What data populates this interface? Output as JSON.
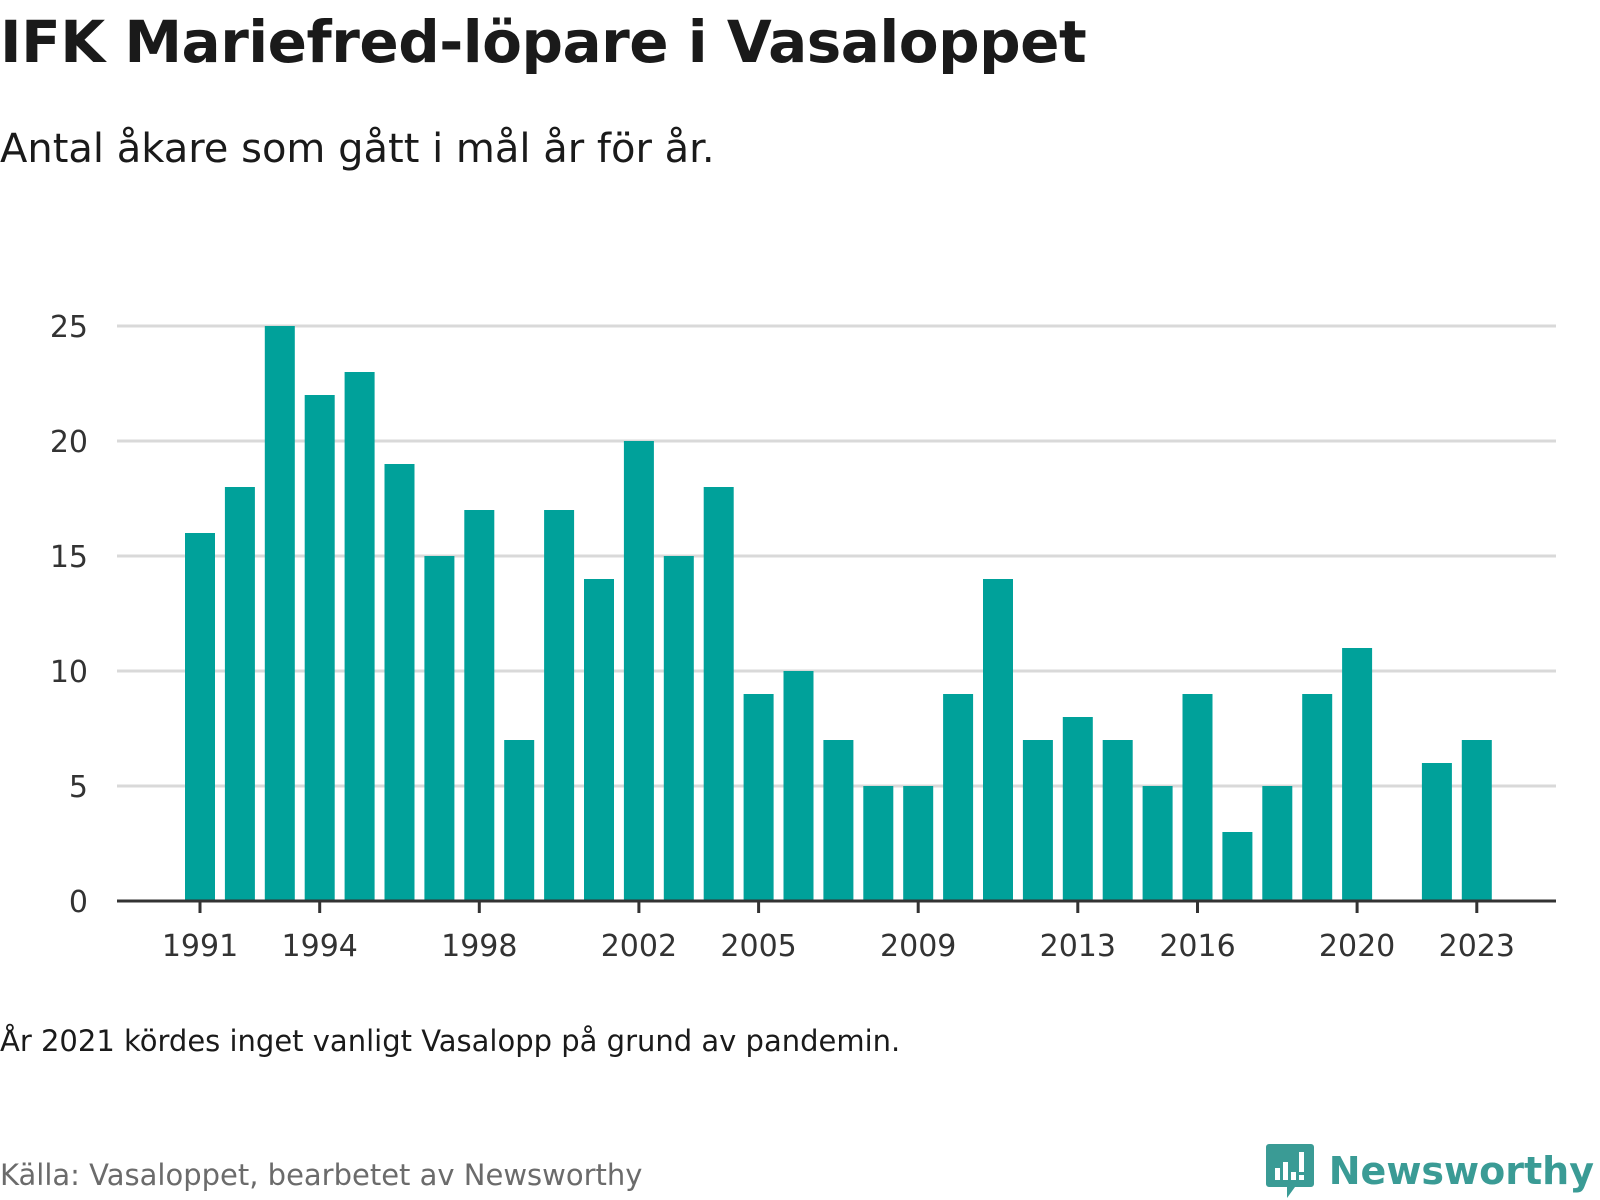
{
  "header": {
    "title": "IFK Mariefred-löpare i Vasaloppet",
    "subtitle": "Antal åkare som gått i mål år för år."
  },
  "footer": {
    "note": "År 2021 kördes inget vanligt Vasalopp på grund av pandemin.",
    "source": "Källa: Vasaloppet, bearbetet av Newsworthy",
    "brand": "Newsworthy",
    "brand_icon": "newsworthy-logo-icon"
  },
  "colors": {
    "bar": "#00a19a",
    "grid": "#d9d9d9",
    "axis": "#333333",
    "brand": "#3a9b95"
  },
  "chart_data": {
    "type": "bar",
    "title": "IFK Mariefred-löpare i Vasaloppet",
    "subtitle": "Antal åkare som gått i mål år för år.",
    "xlabel": "",
    "ylabel": "",
    "ylim": [
      0,
      25
    ],
    "yticks": [
      0,
      5,
      10,
      15,
      20,
      25
    ],
    "grid": true,
    "categories": [
      1991,
      1992,
      1993,
      1994,
      1995,
      1996,
      1997,
      1998,
      1999,
      2000,
      2001,
      2002,
      2003,
      2004,
      2005,
      2006,
      2007,
      2008,
      2009,
      2010,
      2011,
      2012,
      2013,
      2014,
      2015,
      2016,
      2017,
      2018,
      2019,
      2020,
      2021,
      2022,
      2023
    ],
    "values": [
      16,
      18,
      25,
      22,
      23,
      19,
      15,
      17,
      7,
      17,
      14,
      20,
      15,
      18,
      9,
      10,
      7,
      5,
      5,
      9,
      14,
      7,
      8,
      7,
      5,
      9,
      3,
      5,
      9,
      11,
      null,
      6,
      7
    ],
    "xtick_labels": [
      "1991",
      "1994",
      "1998",
      "2002",
      "2005",
      "2009",
      "2013",
      "2016",
      "2020",
      "2023"
    ]
  }
}
